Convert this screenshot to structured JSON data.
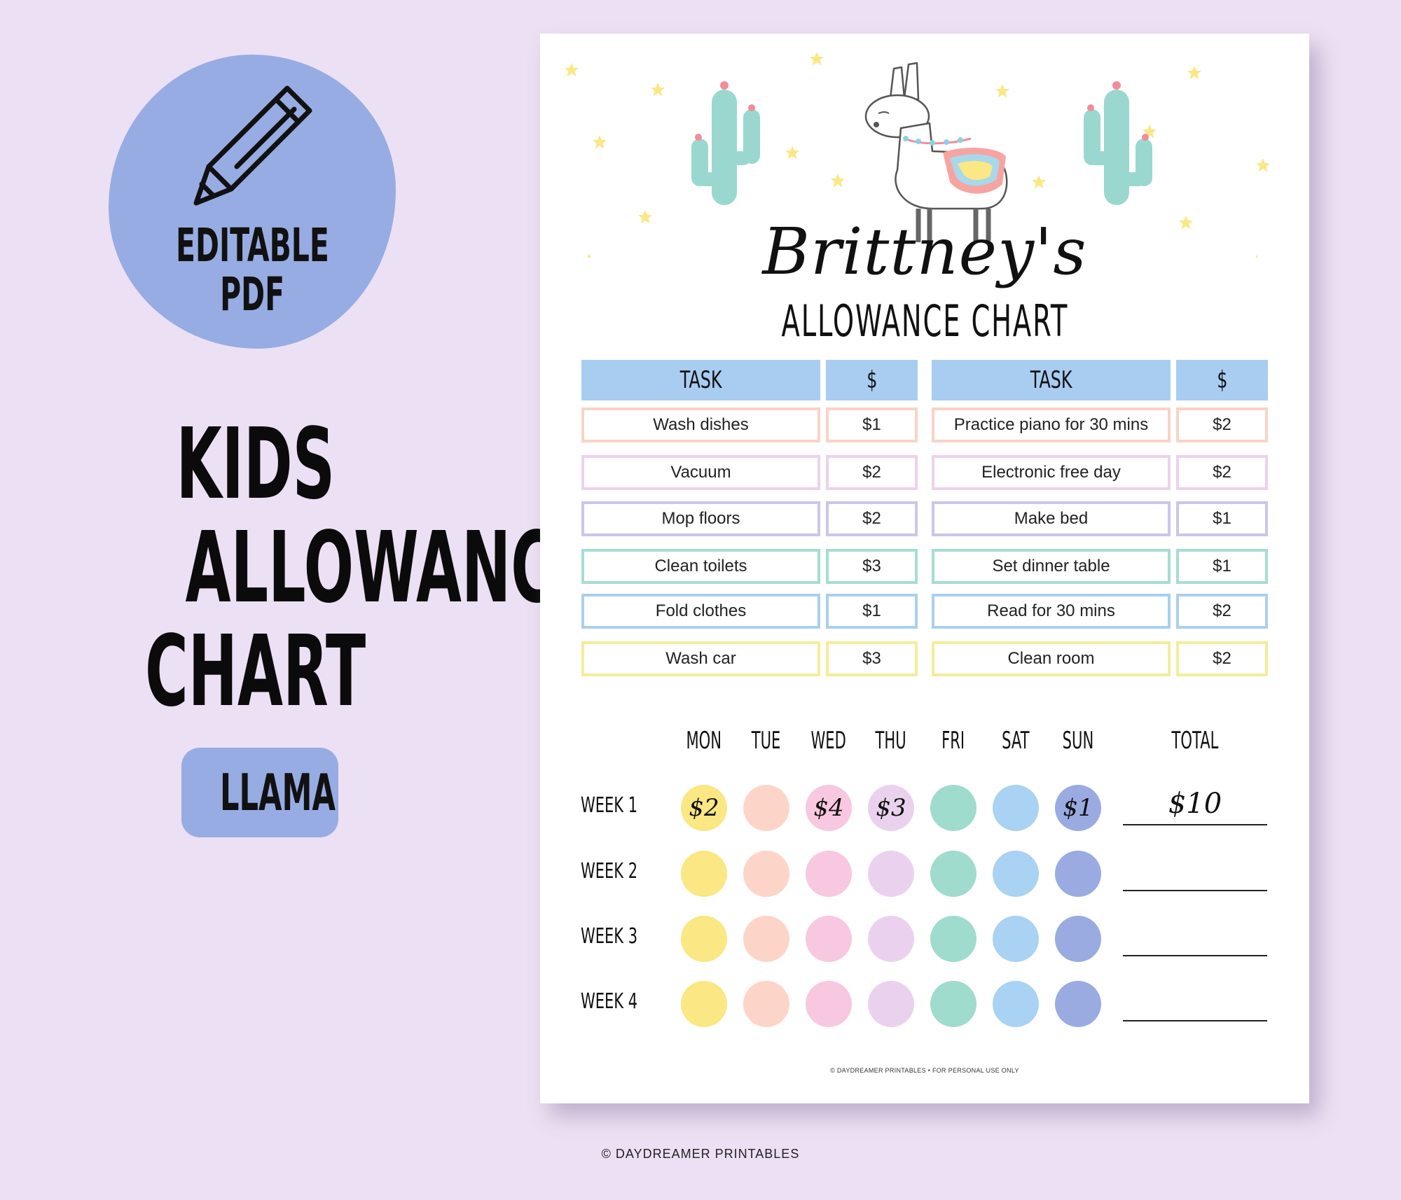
{
  "promo": {
    "badge_line1": "EDITABLE",
    "badge_line2": "PDF",
    "title_lines": [
      "KIDS",
      "ALLOWANCE",
      "CHART"
    ],
    "theme_tag": "LLAMA"
  },
  "sheet": {
    "name": "Brittney's",
    "subtitle": "ALLOWANCE CHART",
    "task_header": "TASK",
    "amount_header": "$",
    "left_tasks": [
      {
        "task": "Wash dishes",
        "amount": "$1",
        "color": "#f9d3c6"
      },
      {
        "task": "Vacuum",
        "amount": "$2",
        "color": "#ecd2ea"
      },
      {
        "task": "Mop floors",
        "amount": "$2",
        "color": "#cbc6ea"
      },
      {
        "task": "Clean toilets",
        "amount": "$3",
        "color": "#a6ddd2"
      },
      {
        "task": "Fold clothes",
        "amount": "$1",
        "color": "#a9d0ee"
      },
      {
        "task": "Wash car",
        "amount": "$3",
        "color": "#f6ec9a"
      }
    ],
    "right_tasks": [
      {
        "task": "Practice piano for 30 mins",
        "amount": "$2",
        "color": "#f9d3c6"
      },
      {
        "task": "Electronic free day",
        "amount": "$2",
        "color": "#ecd2ea"
      },
      {
        "task": "Make bed",
        "amount": "$1",
        "color": "#cbc6ea"
      },
      {
        "task": "Set dinner table",
        "amount": "$1",
        "color": "#a6ddd2"
      },
      {
        "task": "Read for 30 mins",
        "amount": "$2",
        "color": "#a9d0ee"
      },
      {
        "task": "Clean room",
        "amount": "$2",
        "color": "#f6ec9a"
      }
    ],
    "days": [
      "MON",
      "TUE",
      "WED",
      "THU",
      "FRI",
      "SAT",
      "SUN"
    ],
    "total_header": "TOTAL",
    "day_colors": [
      "#fbe783",
      "#fdd5c8",
      "#f7c8df",
      "#ead2ee",
      "#9fdccd",
      "#a9d2f3",
      "#9aabe2"
    ],
    "weeks": [
      {
        "label": "WEEK 1",
        "values": [
          "$2",
          "",
          "$4",
          "$3",
          "",
          "",
          "$1"
        ],
        "total": "$10"
      },
      {
        "label": "WEEK 2",
        "values": [
          "",
          "",
          "",
          "",
          "",
          "",
          ""
        ],
        "total": ""
      },
      {
        "label": "WEEK 3",
        "values": [
          "",
          "",
          "",
          "",
          "",
          "",
          ""
        ],
        "total": ""
      },
      {
        "label": "WEEK 4",
        "values": [
          "",
          "",
          "",
          "",
          "",
          "",
          ""
        ],
        "total": ""
      }
    ],
    "footer_small": "© DAYDREAMER PRINTABLES • FOR PERSONAL USE ONLY"
  },
  "footer": "© DAYDREAMER PRINTABLES",
  "icons": [
    "pencil-icon",
    "llama-illustration",
    "cactus-illustration",
    "star-icon"
  ]
}
